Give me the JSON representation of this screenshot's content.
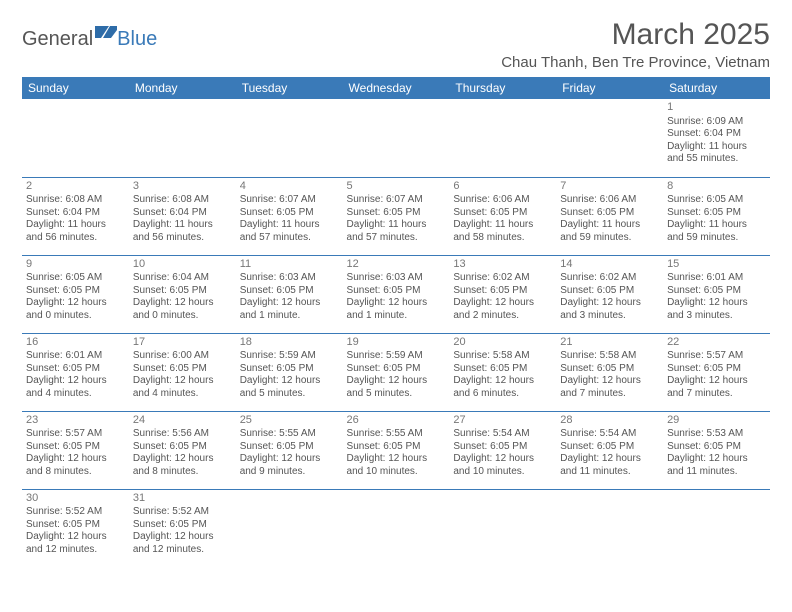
{
  "header": {
    "logo_part1": "General",
    "logo_part2": "Blue",
    "month_title": "March 2025",
    "location": "Chau Thanh, Ben Tre Province, Vietnam"
  },
  "colors": {
    "brand_blue": "#3a7ab8",
    "text_gray": "#555555",
    "bg": "#ffffff"
  },
  "calendar": {
    "type": "table",
    "day_headers": [
      "Sunday",
      "Monday",
      "Tuesday",
      "Wednesday",
      "Thursday",
      "Friday",
      "Saturday"
    ],
    "weeks": [
      [
        null,
        null,
        null,
        null,
        null,
        null,
        {
          "n": "1",
          "sr": "Sunrise: 6:09 AM",
          "ss": "Sunset: 6:04 PM",
          "dl": "Daylight: 11 hours and 55 minutes."
        }
      ],
      [
        {
          "n": "2",
          "sr": "Sunrise: 6:08 AM",
          "ss": "Sunset: 6:04 PM",
          "dl": "Daylight: 11 hours and 56 minutes."
        },
        {
          "n": "3",
          "sr": "Sunrise: 6:08 AM",
          "ss": "Sunset: 6:04 PM",
          "dl": "Daylight: 11 hours and 56 minutes."
        },
        {
          "n": "4",
          "sr": "Sunrise: 6:07 AM",
          "ss": "Sunset: 6:05 PM",
          "dl": "Daylight: 11 hours and 57 minutes."
        },
        {
          "n": "5",
          "sr": "Sunrise: 6:07 AM",
          "ss": "Sunset: 6:05 PM",
          "dl": "Daylight: 11 hours and 57 minutes."
        },
        {
          "n": "6",
          "sr": "Sunrise: 6:06 AM",
          "ss": "Sunset: 6:05 PM",
          "dl": "Daylight: 11 hours and 58 minutes."
        },
        {
          "n": "7",
          "sr": "Sunrise: 6:06 AM",
          "ss": "Sunset: 6:05 PM",
          "dl": "Daylight: 11 hours and 59 minutes."
        },
        {
          "n": "8",
          "sr": "Sunrise: 6:05 AM",
          "ss": "Sunset: 6:05 PM",
          "dl": "Daylight: 11 hours and 59 minutes."
        }
      ],
      [
        {
          "n": "9",
          "sr": "Sunrise: 6:05 AM",
          "ss": "Sunset: 6:05 PM",
          "dl": "Daylight: 12 hours and 0 minutes."
        },
        {
          "n": "10",
          "sr": "Sunrise: 6:04 AM",
          "ss": "Sunset: 6:05 PM",
          "dl": "Daylight: 12 hours and 0 minutes."
        },
        {
          "n": "11",
          "sr": "Sunrise: 6:03 AM",
          "ss": "Sunset: 6:05 PM",
          "dl": "Daylight: 12 hours and 1 minute."
        },
        {
          "n": "12",
          "sr": "Sunrise: 6:03 AM",
          "ss": "Sunset: 6:05 PM",
          "dl": "Daylight: 12 hours and 1 minute."
        },
        {
          "n": "13",
          "sr": "Sunrise: 6:02 AM",
          "ss": "Sunset: 6:05 PM",
          "dl": "Daylight: 12 hours and 2 minutes."
        },
        {
          "n": "14",
          "sr": "Sunrise: 6:02 AM",
          "ss": "Sunset: 6:05 PM",
          "dl": "Daylight: 12 hours and 3 minutes."
        },
        {
          "n": "15",
          "sr": "Sunrise: 6:01 AM",
          "ss": "Sunset: 6:05 PM",
          "dl": "Daylight: 12 hours and 3 minutes."
        }
      ],
      [
        {
          "n": "16",
          "sr": "Sunrise: 6:01 AM",
          "ss": "Sunset: 6:05 PM",
          "dl": "Daylight: 12 hours and 4 minutes."
        },
        {
          "n": "17",
          "sr": "Sunrise: 6:00 AM",
          "ss": "Sunset: 6:05 PM",
          "dl": "Daylight: 12 hours and 4 minutes."
        },
        {
          "n": "18",
          "sr": "Sunrise: 5:59 AM",
          "ss": "Sunset: 6:05 PM",
          "dl": "Daylight: 12 hours and 5 minutes."
        },
        {
          "n": "19",
          "sr": "Sunrise: 5:59 AM",
          "ss": "Sunset: 6:05 PM",
          "dl": "Daylight: 12 hours and 5 minutes."
        },
        {
          "n": "20",
          "sr": "Sunrise: 5:58 AM",
          "ss": "Sunset: 6:05 PM",
          "dl": "Daylight: 12 hours and 6 minutes."
        },
        {
          "n": "21",
          "sr": "Sunrise: 5:58 AM",
          "ss": "Sunset: 6:05 PM",
          "dl": "Daylight: 12 hours and 7 minutes."
        },
        {
          "n": "22",
          "sr": "Sunrise: 5:57 AM",
          "ss": "Sunset: 6:05 PM",
          "dl": "Daylight: 12 hours and 7 minutes."
        }
      ],
      [
        {
          "n": "23",
          "sr": "Sunrise: 5:57 AM",
          "ss": "Sunset: 6:05 PM",
          "dl": "Daylight: 12 hours and 8 minutes."
        },
        {
          "n": "24",
          "sr": "Sunrise: 5:56 AM",
          "ss": "Sunset: 6:05 PM",
          "dl": "Daylight: 12 hours and 8 minutes."
        },
        {
          "n": "25",
          "sr": "Sunrise: 5:55 AM",
          "ss": "Sunset: 6:05 PM",
          "dl": "Daylight: 12 hours and 9 minutes."
        },
        {
          "n": "26",
          "sr": "Sunrise: 5:55 AM",
          "ss": "Sunset: 6:05 PM",
          "dl": "Daylight: 12 hours and 10 minutes."
        },
        {
          "n": "27",
          "sr": "Sunrise: 5:54 AM",
          "ss": "Sunset: 6:05 PM",
          "dl": "Daylight: 12 hours and 10 minutes."
        },
        {
          "n": "28",
          "sr": "Sunrise: 5:54 AM",
          "ss": "Sunset: 6:05 PM",
          "dl": "Daylight: 12 hours and 11 minutes."
        },
        {
          "n": "29",
          "sr": "Sunrise: 5:53 AM",
          "ss": "Sunset: 6:05 PM",
          "dl": "Daylight: 12 hours and 11 minutes."
        }
      ],
      [
        {
          "n": "30",
          "sr": "Sunrise: 5:52 AM",
          "ss": "Sunset: 6:05 PM",
          "dl": "Daylight: 12 hours and 12 minutes."
        },
        {
          "n": "31",
          "sr": "Sunrise: 5:52 AM",
          "ss": "Sunset: 6:05 PM",
          "dl": "Daylight: 12 hours and 12 minutes."
        },
        null,
        null,
        null,
        null,
        null
      ]
    ]
  }
}
